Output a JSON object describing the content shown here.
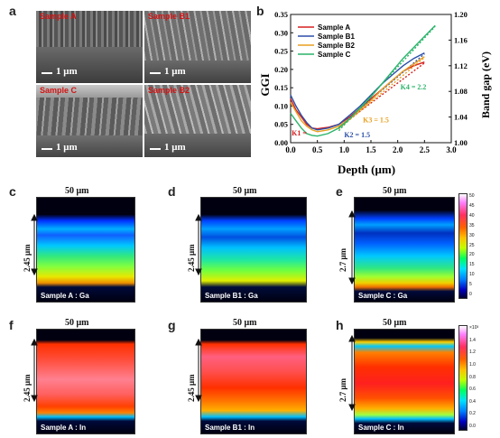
{
  "panels": {
    "a": "a",
    "b": "b",
    "c": "c",
    "d": "d",
    "e": "e",
    "f": "f",
    "g": "g",
    "h": "h"
  },
  "sem": {
    "tiles": [
      {
        "title": "Sample A",
        "scale": "1 μm"
      },
      {
        "title": "Sample B1",
        "scale": "1 μm"
      },
      {
        "title": "Sample C",
        "scale": "1 μm"
      },
      {
        "title": "Sample B2",
        "scale": "1 μm"
      }
    ]
  },
  "maps": {
    "top_scale": "50 μm",
    "depth_a": "2.45 μm",
    "depth_b1": "2.45 μm",
    "depth_c": "2.7 μm",
    "ga": [
      "Sample A : Ga",
      "Sample B1 : Ga",
      "Sample C : Ga"
    ],
    "in": [
      "Sample A : In",
      "Sample B1 : In",
      "Sample C : In"
    ],
    "cbar_ga_ticks": [
      "50",
      "45",
      "40",
      "35",
      "30",
      "25",
      "20",
      "15",
      "10",
      "5",
      "0"
    ],
    "cbar_in_ticks": [
      "×10³",
      "1.4",
      "1.2",
      "1.0",
      "0.8",
      "0.6",
      "0.4",
      "0.2",
      "0.0"
    ]
  },
  "chart_data": {
    "type": "line",
    "xlabel": "Depth (μm)",
    "ylabel": "GGI",
    "y2label": "Band gap (eV)",
    "xlim": [
      0.0,
      3.0
    ],
    "ylim": [
      0.0,
      0.35
    ],
    "y2lim": [
      1.0,
      1.2
    ],
    "xticks": [
      "0.0",
      "0.5",
      "1.0",
      "1.5",
      "2.0",
      "2.5",
      "3.0"
    ],
    "yticks": [
      "0.00",
      "0.05",
      "0.10",
      "0.15",
      "0.20",
      "0.25",
      "0.30",
      "0.35"
    ],
    "y2ticks": [
      "1.00",
      "1.04",
      "1.08",
      "1.12",
      "1.16",
      "1.20"
    ],
    "legend": "top-left",
    "series": [
      {
        "name": "Sample A",
        "color": "#d62020",
        "x": [
          0.0,
          0.1,
          0.2,
          0.3,
          0.4,
          0.5,
          0.7,
          0.9,
          1.1,
          1.3,
          1.5,
          1.7,
          1.9,
          2.1,
          2.3,
          2.5
        ],
        "y": [
          0.12,
          0.09,
          0.07,
          0.05,
          0.04,
          0.038,
          0.042,
          0.05,
          0.07,
          0.095,
          0.12,
          0.145,
          0.17,
          0.195,
          0.21,
          0.22
        ]
      },
      {
        "name": "Sample B1",
        "color": "#2a4fa8",
        "x": [
          0.0,
          0.1,
          0.2,
          0.3,
          0.4,
          0.5,
          0.7,
          0.9,
          1.1,
          1.3,
          1.5,
          1.7,
          1.9,
          2.1,
          2.3,
          2.5
        ],
        "y": [
          0.13,
          0.1,
          0.075,
          0.055,
          0.04,
          0.035,
          0.04,
          0.05,
          0.075,
          0.1,
          0.13,
          0.16,
          0.185,
          0.21,
          0.23,
          0.245
        ]
      },
      {
        "name": "Sample B2",
        "color": "#e8a020",
        "x": [
          0.0,
          0.1,
          0.2,
          0.3,
          0.4,
          0.5,
          0.7,
          0.9,
          1.1,
          1.3,
          1.5,
          1.7,
          1.9,
          2.1,
          2.3,
          2.5
        ],
        "y": [
          0.11,
          0.085,
          0.06,
          0.045,
          0.035,
          0.03,
          0.035,
          0.045,
          0.065,
          0.09,
          0.115,
          0.145,
          0.17,
          0.195,
          0.215,
          0.235
        ]
      },
      {
        "name": "Sample C",
        "color": "#2ab46a",
        "x": [
          0.0,
          0.1,
          0.2,
          0.3,
          0.4,
          0.5,
          0.7,
          0.9,
          1.1,
          1.3,
          1.5,
          1.7,
          1.9,
          2.1,
          2.3,
          2.5,
          2.7
        ],
        "y": [
          0.08,
          0.06,
          0.04,
          0.025,
          0.02,
          0.018,
          0.025,
          0.04,
          0.065,
          0.095,
          0.125,
          0.16,
          0.195,
          0.23,
          0.26,
          0.29,
          0.32
        ]
      }
    ],
    "annotations": [
      {
        "text": "K1 = ",
        "color": "#d62020",
        "x": 0.02,
        "y": 0.02
      },
      {
        "text": "K2 = 1.5",
        "color": "#2a4fa8",
        "x": 1.0,
        "y": 0.015
      },
      {
        "text": "K3 = 1.5",
        "color": "#e8a020",
        "x": 1.35,
        "y": 0.055
      },
      {
        "text": "K4 = 2.2",
        "color": "#2ab46a",
        "x": 2.05,
        "y": 0.145
      }
    ]
  }
}
